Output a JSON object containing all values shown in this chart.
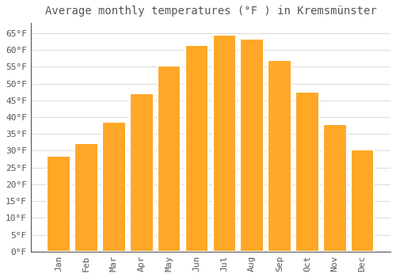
{
  "title": "Average monthly temperatures (°F ) in Kremsmünster",
  "months": [
    "Jan",
    "Feb",
    "Mar",
    "Apr",
    "May",
    "Jun",
    "Jul",
    "Aug",
    "Sep",
    "Oct",
    "Nov",
    "Dec"
  ],
  "values": [
    28.4,
    32.2,
    38.5,
    47.0,
    55.2,
    61.5,
    64.4,
    63.3,
    57.0,
    47.5,
    38.0,
    30.4
  ],
  "bar_color": "#FFA726",
  "bar_edge_color": "#FFFFFF",
  "background_color": "#FFFFFF",
  "grid_color": "#DDDDDD",
  "text_color": "#555555",
  "ylim": [
    0,
    68
  ],
  "yticks": [
    0,
    5,
    10,
    15,
    20,
    25,
    30,
    35,
    40,
    45,
    50,
    55,
    60,
    65
  ],
  "title_fontsize": 10,
  "tick_fontsize": 8,
  "font_family": "monospace"
}
